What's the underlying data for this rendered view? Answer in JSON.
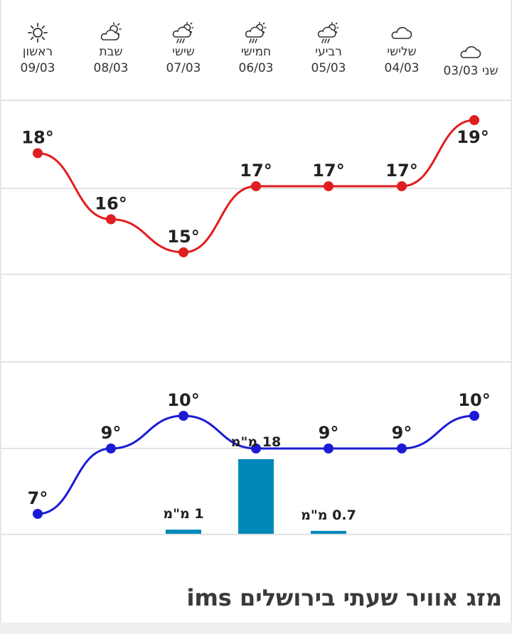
{
  "page": {
    "title": "מזג אוויר שעתי בירושלים ims"
  },
  "colors": {
    "high": "#e01e1e",
    "low": "#1b1bd6",
    "rain": "#0088bb",
    "grid": "#e3e3e3",
    "text": "#333333"
  },
  "days": [
    {
      "name": "ראשון",
      "date": "09/03",
      "icon": "sun-icon"
    },
    {
      "name": "שבת",
      "date": "08/03",
      "icon": "partly-cloudy-icon"
    },
    {
      "name": "שישי",
      "date": "07/03",
      "icon": "rain-cloud-sun-icon"
    },
    {
      "name": "חמישי",
      "date": "06/03",
      "icon": "rain-cloud-sun-icon"
    },
    {
      "name": "רביעי",
      "date": "05/03",
      "icon": "rain-cloud-sun-icon"
    },
    {
      "name": "שלישי",
      "date": "04/03",
      "icon": "cloud-icon"
    },
    {
      "name": "שני",
      "date": "03/03",
      "icon": "cloud-icon"
    }
  ],
  "chart_data": {
    "type": "line",
    "categories": [
      "09/03",
      "08/03",
      "07/03",
      "06/03",
      "05/03",
      "04/03",
      "03/03"
    ],
    "series": [
      {
        "values": [
          18,
          16,
          15,
          17,
          17,
          17,
          19
        ],
        "labels": [
          "18°",
          "16°",
          "15°",
          "17°",
          "17°",
          "17°",
          "19°"
        ]
      },
      {
        "values": [
          7,
          9,
          10,
          9,
          9,
          9,
          10
        ],
        "labels": [
          "7°",
          "9°",
          "10°",
          "9°",
          "9°",
          "9°",
          "10°"
        ]
      }
    ],
    "rain": {
      "values": [
        0,
        0,
        1,
        18,
        0.7,
        0,
        0
      ],
      "labels": [
        "",
        "",
        "1 מ\"מ",
        "18 מ\"מ",
        "0.7 מ\"מ",
        "",
        ""
      ]
    },
    "ylim_high": [
      14,
      19
    ],
    "ylim_low": [
      7,
      10
    ],
    "grid": true
  }
}
